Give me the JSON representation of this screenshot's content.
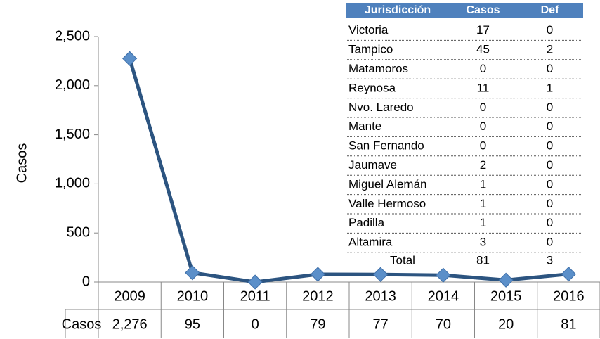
{
  "chart_data": {
    "type": "line",
    "y_label": "Casos",
    "categories": [
      "2009",
      "2010",
      "2011",
      "2012",
      "2013",
      "2014",
      "2015",
      "2016"
    ],
    "series": [
      {
        "name": "Casos",
        "color": "#2c5480",
        "marker_color": "#5b8fc9",
        "values": [
          2276,
          95,
          0,
          79,
          77,
          70,
          20,
          81
        ],
        "value_labels": [
          "2,276",
          "95",
          "0",
          "79",
          "77",
          "70",
          "20",
          "81"
        ]
      }
    ],
    "ylim": [
      0,
      2500
    ],
    "yticks": [
      0,
      500,
      {
        "value": 1000,
        "label": "1,000"
      },
      {
        "value": 1500,
        "label": "1,500"
      },
      {
        "value": 2000,
        "label": "2,000"
      },
      {
        "value": 2500,
        "label": "2,500"
      }
    ]
  },
  "table": {
    "header": [
      "Jurisdicción",
      "Casos",
      "Def"
    ],
    "rows": [
      [
        "Victoria",
        17,
        0
      ],
      [
        "Tampico",
        45,
        2
      ],
      [
        "Matamoros",
        0,
        0
      ],
      [
        "Reynosa",
        11,
        1
      ],
      [
        "Nvo. Laredo",
        0,
        0
      ],
      [
        "Mante",
        0,
        0
      ],
      [
        "San Fernando",
        0,
        0
      ],
      [
        "Jaumave",
        2,
        0
      ],
      [
        "Miguel Alemán",
        1,
        0
      ],
      [
        "Valle Hermoso",
        1,
        0
      ],
      [
        "Padilla",
        1,
        0
      ],
      [
        "Altamira",
        3,
        0
      ]
    ],
    "total": [
      "Total",
      81,
      3
    ]
  }
}
